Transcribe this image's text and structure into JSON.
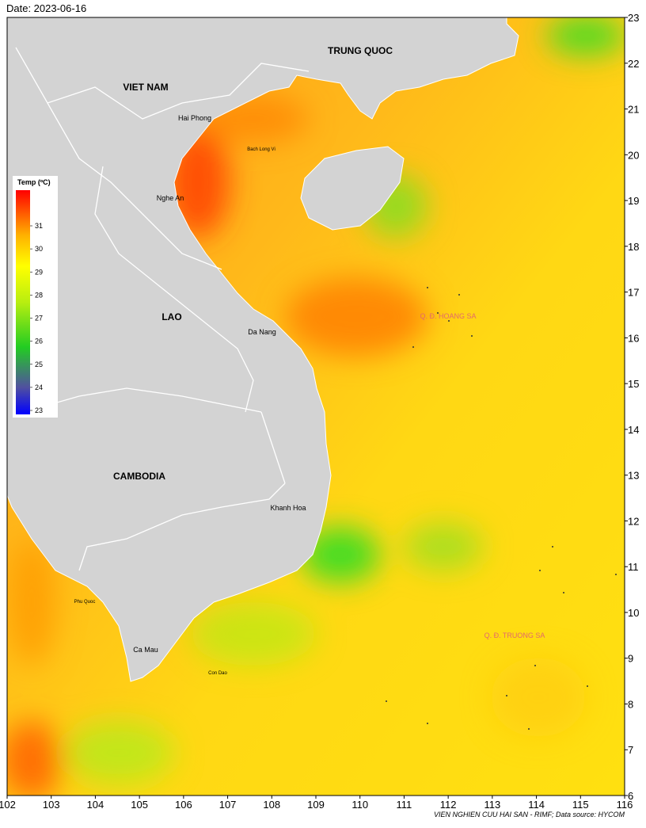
{
  "header": {
    "date": "Date: 2023-06-16"
  },
  "map": {
    "x_ticks": [
      102,
      103,
      104,
      105,
      106,
      107,
      108,
      109,
      110,
      111,
      112,
      113,
      114,
      115,
      116
    ],
    "y_ticks": [
      6,
      7,
      8,
      9,
      10,
      11,
      12,
      13,
      14,
      15,
      16,
      17,
      18,
      19,
      20,
      21,
      22,
      23
    ],
    "countries": [
      "TRUNG QUOC",
      "VIET NAM",
      "LAO",
      "CAMBODIA"
    ],
    "places": [
      "Hai Phong",
      "Bach Long Vi",
      "Nghe An",
      "Da Nang",
      "Khanh Hoa",
      "Phu Quoc",
      "Ca Mau",
      "Con Dao"
    ],
    "islands": [
      "Q. Đ. HOANG SA",
      "Q. Đ. TRUONG SA"
    ]
  },
  "legend": {
    "title": "Temp (ºC)",
    "ticks": [
      23,
      24,
      25,
      26,
      27,
      28,
      29,
      30,
      31
    ]
  },
  "footer": {
    "credit": "VIEN NGHIEN CUU HAI SAN - RIMF; Data source: HYCOM"
  }
}
